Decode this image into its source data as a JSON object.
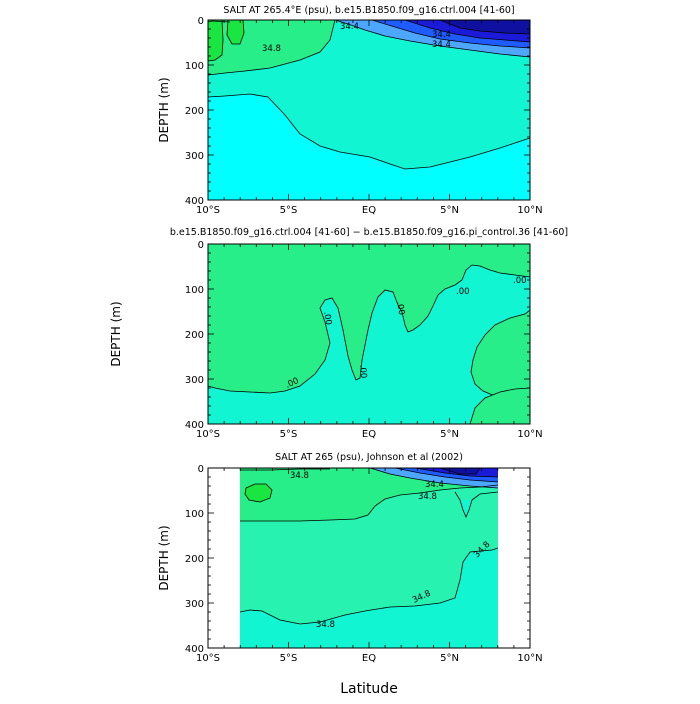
{
  "colors": {
    "cyan": "#00ffff",
    "aquamarine": "#11f5d2",
    "green": "#27ee88",
    "bright_green": "#19e640",
    "blue_light": "#4da6ff",
    "blue_mid": "#1f5cff",
    "blue_dark": "#1a1ad8",
    "blue_darker": "#1010a0",
    "line": "#000000"
  },
  "figure": {
    "xlabel": "Latitude"
  },
  "chart_data": [
    {
      "type": "contour",
      "title": "SALT AT 265.4°E (psu), b.e15.B1850.f09_g16.ctrl.004 [41-60]",
      "xlabel": "",
      "ylabel": "DEPTH (m)",
      "xlim": [
        -10,
        10
      ],
      "ylim": [
        400,
        0
      ],
      "x_ticks": [
        -10,
        -5,
        0,
        5,
        10
      ],
      "x_tick_labels": [
        "10°S",
        "5°S",
        "EQ",
        "5°N",
        "10°N"
      ],
      "y_ticks": [
        0,
        100,
        200,
        300,
        400
      ],
      "y_tick_labels": [
        "0",
        "100",
        "200",
        "300",
        "400"
      ],
      "contour_labels": [
        "34.4",
        "34.8",
        "34.4",
        "34.4"
      ]
    },
    {
      "type": "contour",
      "title": "b.e15.B1850.f09_g16.ctrl.004 [41-60] − b.e15.B1850.f09_g16.pi_control.36 [41-60]",
      "xlabel": "",
      "ylabel": "DEPTH (m)",
      "xlim": [
        -10,
        10
      ],
      "ylim": [
        400,
        0
      ],
      "x_ticks": [
        -10,
        -5,
        0,
        5,
        10
      ],
      "x_tick_labels": [
        "10°S",
        "5°S",
        "EQ",
        "5°N",
        "10°N"
      ],
      "y_ticks": [
        0,
        100,
        200,
        300,
        400
      ],
      "y_tick_labels": [
        "0",
        "100",
        "200",
        "300",
        "400"
      ],
      "contour_labels": [
        ".00",
        ".00",
        ".00",
        ".00",
        ".00",
        ".00"
      ]
    },
    {
      "type": "contour",
      "title": "SALT AT 265 (psu), Johnson et al (2002)",
      "xlabel": "",
      "ylabel": "DEPTH (m)",
      "xlim": [
        -10,
        10
      ],
      "ylim": [
        400,
        0
      ],
      "x_ticks": [
        -10,
        -5,
        0,
        5,
        10
      ],
      "x_tick_labels": [
        "10°S",
        "5°S",
        "EQ",
        "5°N",
        "10°N"
      ],
      "y_ticks": [
        0,
        100,
        200,
        300,
        400
      ],
      "y_tick_labels": [
        "0",
        "100",
        "200",
        "300",
        "400"
      ],
      "data_extent_lat": [
        -8,
        8
      ],
      "contour_labels": [
        "34.8",
        "34.4",
        "34.8",
        "34.8",
        "34.8",
        "34.8"
      ]
    }
  ]
}
